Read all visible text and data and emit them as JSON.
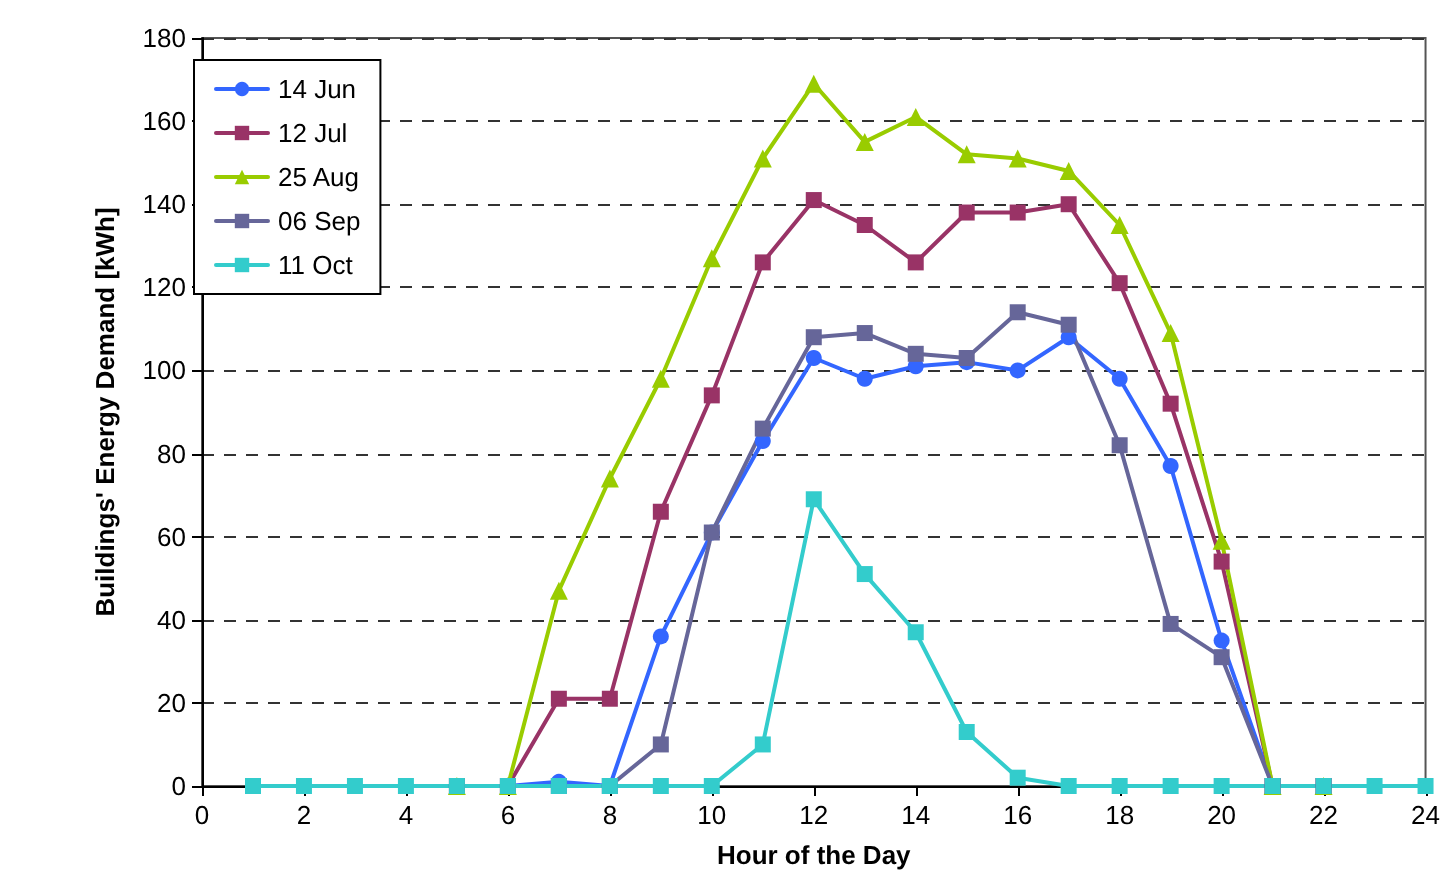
{
  "chart_data": {
    "type": "line",
    "xlabel": "Hour of the Day",
    "ylabel": "Buildings' Energy Demand [kWh]",
    "x": [
      1,
      2,
      3,
      4,
      5,
      6,
      7,
      8,
      9,
      10,
      11,
      12,
      13,
      14,
      15,
      16,
      17,
      18,
      19,
      20,
      21,
      22,
      23,
      24
    ],
    "xlim": [
      0,
      24
    ],
    "xticks": [
      0,
      2,
      4,
      6,
      8,
      10,
      12,
      14,
      16,
      18,
      20,
      22,
      24
    ],
    "ylim": [
      0,
      180
    ],
    "yticks": [
      0,
      20,
      40,
      60,
      80,
      100,
      120,
      140,
      160,
      180
    ],
    "grid": "y",
    "legend": "top left",
    "line_style": "solid",
    "series": [
      {
        "name": "14 Jun",
        "color": "#3366ff",
        "marker": "circle",
        "values": [
          null,
          null,
          null,
          null,
          0,
          0,
          1,
          0,
          36,
          61,
          83,
          103,
          98,
          101,
          102,
          100,
          108,
          98,
          77,
          35,
          0,
          0,
          null,
          null
        ]
      },
      {
        "name": "12 Jul",
        "color": "#993366",
        "marker": "square",
        "values": [
          null,
          null,
          null,
          null,
          0,
          0,
          21,
          21,
          66,
          94,
          126,
          141,
          135,
          126,
          138,
          138,
          140,
          121,
          92,
          54,
          0,
          0,
          null,
          null
        ]
      },
      {
        "name": "25 Aug",
        "color": "#99cc00",
        "marker": "triangle",
        "values": [
          null,
          null,
          null,
          null,
          0,
          0,
          47,
          74,
          98,
          127,
          151,
          169,
          155,
          161,
          152,
          151,
          148,
          135,
          109,
          59,
          0,
          0,
          null,
          null
        ]
      },
      {
        "name": "06 Sep",
        "color": "#666699",
        "marker": "square",
        "values": [
          null,
          null,
          null,
          null,
          null,
          null,
          0,
          0,
          10,
          61,
          86,
          108,
          109,
          104,
          103,
          114,
          111,
          82,
          39,
          31,
          0,
          0,
          null,
          null
        ]
      },
      {
        "name": "11 Oct",
        "color": "#33cccc",
        "marker": "square",
        "values": [
          0,
          0,
          0,
          0,
          0,
          0,
          0,
          0,
          0,
          0,
          10,
          69,
          51,
          37,
          13,
          2,
          0,
          0,
          0,
          0,
          0,
          0,
          0,
          0
        ]
      }
    ]
  }
}
